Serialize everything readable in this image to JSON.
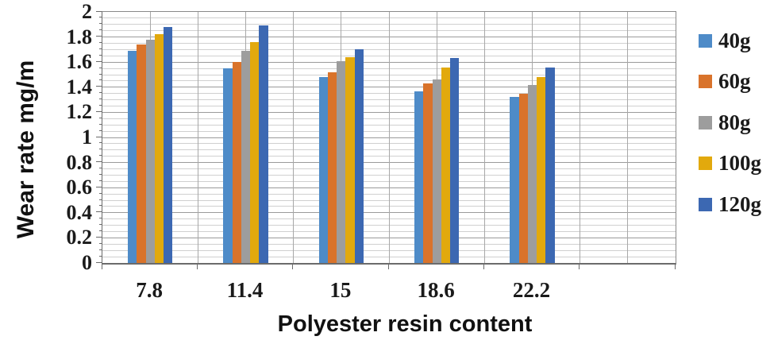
{
  "chart_data": {
    "type": "bar",
    "title": "",
    "xlabel": "Polyester resin content",
    "ylabel": "Wear rate mg/m",
    "categories": [
      "7.8",
      "11.4",
      "15",
      "18.6",
      "22.2"
    ],
    "series": [
      {
        "name": "40g",
        "color": "#4E8BC8",
        "values": [
          1.69,
          1.55,
          1.48,
          1.37,
          1.32
        ]
      },
      {
        "name": "60g",
        "color": "#D9732B",
        "values": [
          1.74,
          1.6,
          1.52,
          1.43,
          1.35
        ]
      },
      {
        "name": "80g",
        "color": "#9D9D9D",
        "values": [
          1.78,
          1.69,
          1.61,
          1.46,
          1.42
        ]
      },
      {
        "name": "100g",
        "color": "#E2A90D",
        "values": [
          1.82,
          1.76,
          1.64,
          1.56,
          1.48
        ]
      },
      {
        "name": "120g",
        "color": "#3C68B2",
        "values": [
          1.88,
          1.89,
          1.7,
          1.63,
          1.56
        ]
      }
    ],
    "ylim": [
      0,
      2
    ],
    "y_major_step": 0.2,
    "y_minor_step": 0.05,
    "y_tick_labels": [
      "0",
      "0.2",
      "0.4",
      "0.6",
      "0.8",
      "1",
      "1.2",
      "1.4",
      "1.6",
      "1.8",
      "2"
    ],
    "x_axis_trailing_empty_slots": 1,
    "grid": true,
    "legend_position": "right",
    "text_color": "#1a1a1a",
    "background_color": "#ffffff"
  }
}
